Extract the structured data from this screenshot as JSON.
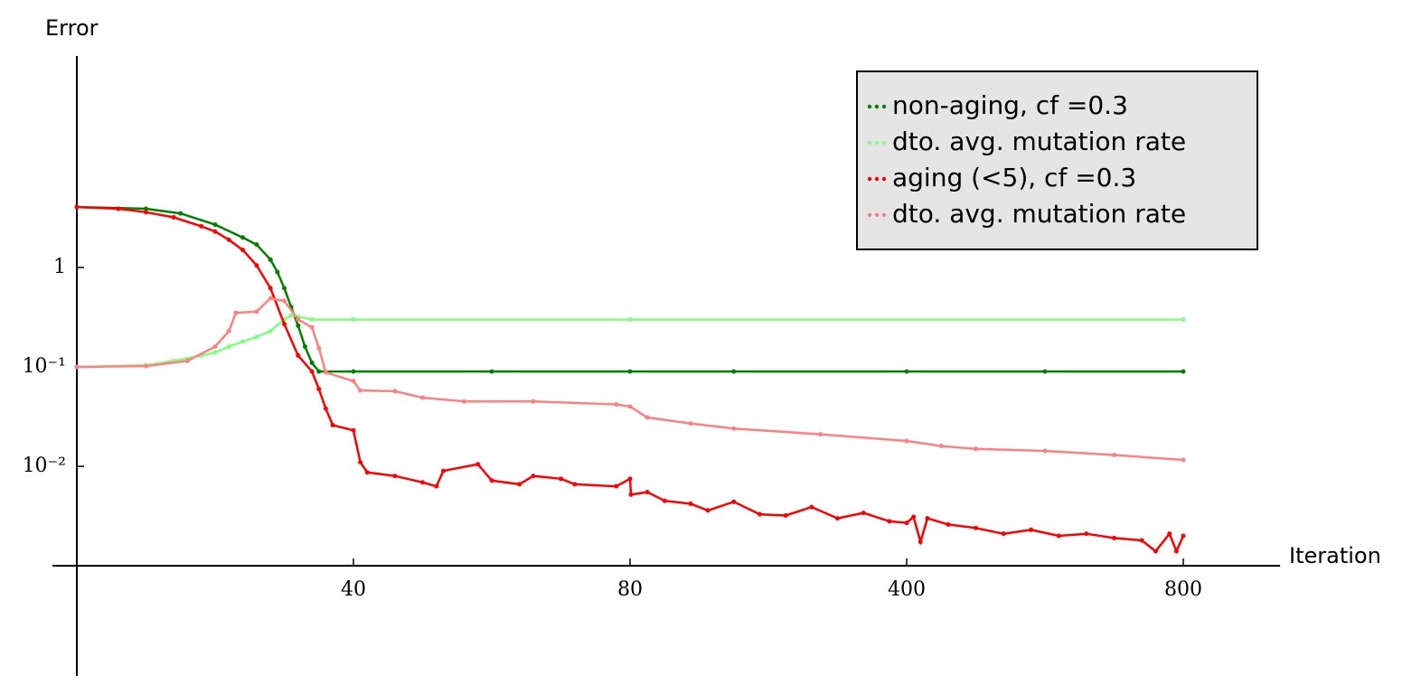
{
  "chart_data": {
    "type": "line",
    "y_label": "Error",
    "x_label": "Iteration",
    "xscale": "piecewise-by-ticks",
    "yscale": "log",
    "xlim": [
      0,
      940
    ],
    "ylim": [
      7.8e-05,
      134
    ],
    "x_axis_at": 0.001,
    "xticks": [
      40,
      80,
      400,
      800
    ],
    "yticks": [
      {
        "value": 1,
        "label": "1"
      },
      {
        "value": 0.1,
        "label": "10⁻¹"
      },
      {
        "value": 0.01,
        "label": "10⁻²"
      }
    ],
    "legend": "upper right",
    "series": [
      {
        "name": "non-aging, cf =0.3",
        "color": "#008000",
        "x": [
          0,
          10,
          15,
          20,
          24,
          26,
          28,
          29,
          30,
          31,
          32,
          33,
          34,
          35,
          40,
          60,
          80,
          200,
          400,
          600,
          800
        ],
        "values": [
          4.06,
          3.9,
          3.5,
          2.7,
          2.0,
          1.7,
          1.2,
          0.9,
          0.62,
          0.4,
          0.26,
          0.16,
          0.11,
          0.09,
          0.09,
          0.09,
          0.09,
          0.09,
          0.09,
          0.09,
          0.09
        ]
      },
      {
        "name": "dto. avg. mutation rate",
        "color": "#80ff80",
        "x": [
          0,
          10,
          14,
          18,
          20,
          22,
          24,
          26,
          28,
          30,
          31,
          32,
          34,
          40,
          80,
          800
        ],
        "values": [
          0.1,
          0.104,
          0.115,
          0.13,
          0.14,
          0.16,
          0.18,
          0.2,
          0.23,
          0.3,
          0.33,
          0.32,
          0.3,
          0.3,
          0.3,
          0.3
        ]
      },
      {
        "name": "aging (<5), cf =0.3",
        "color": "#ff0000",
        "x": [
          0,
          6,
          10,
          14,
          18,
          20,
          22,
          24,
          26,
          28,
          30,
          32,
          34,
          35,
          36,
          37,
          40,
          41,
          42,
          46,
          50,
          52,
          53,
          58,
          60,
          64,
          66,
          70,
          72,
          78,
          80,
          81,
          100,
          120,
          150,
          170,
          200,
          230,
          260,
          290,
          320,
          350,
          380,
          400,
          410,
          420,
          430,
          460,
          500,
          540,
          580,
          620,
          660,
          700,
          740,
          760,
          780,
          790,
          800
        ],
        "values": [
          4.06,
          3.9,
          3.6,
          3.2,
          2.6,
          2.3,
          1.9,
          1.5,
          1.05,
          0.62,
          0.27,
          0.13,
          0.09,
          0.06,
          0.038,
          0.026,
          0.023,
          0.011,
          0.0087,
          0.008,
          0.0069,
          0.0063,
          0.009,
          0.0105,
          0.0072,
          0.0066,
          0.008,
          0.0075,
          0.0066,
          0.0063,
          0.0075,
          0.0052,
          0.0055,
          0.0045,
          0.0042,
          0.0036,
          0.0044,
          0.0033,
          0.0032,
          0.0039,
          0.003,
          0.0034,
          0.0028,
          0.0027,
          0.0031,
          0.00174,
          0.003,
          0.0026,
          0.0024,
          0.0021,
          0.0023,
          0.002,
          0.0021,
          0.0019,
          0.0018,
          0.0014,
          0.0021,
          0.0014,
          0.002
        ]
      },
      {
        "name": "dto. avg. mutation rate",
        "color": "#ff8080",
        "x": [
          0,
          10,
          16,
          20,
          22,
          23,
          26,
          28,
          30,
          32,
          34,
          35,
          36,
          40,
          41,
          46,
          50,
          56,
          66,
          78,
          80,
          100,
          150,
          200,
          300,
          400,
          450,
          500,
          600,
          700,
          800
        ],
        "values": [
          0.1,
          0.102,
          0.115,
          0.16,
          0.23,
          0.35,
          0.36,
          0.49,
          0.46,
          0.3,
          0.25,
          0.155,
          0.088,
          0.072,
          0.058,
          0.057,
          0.049,
          0.045,
          0.045,
          0.042,
          0.04,
          0.031,
          0.027,
          0.024,
          0.021,
          0.018,
          0.016,
          0.015,
          0.0143,
          0.013,
          0.0116
        ]
      }
    ]
  }
}
